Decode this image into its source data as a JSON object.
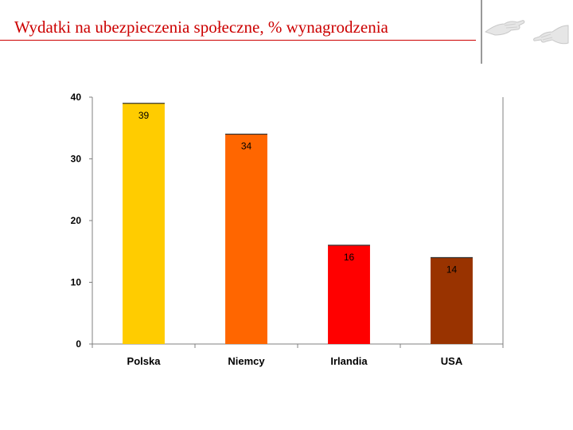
{
  "slide": {
    "title": "Wydatki na ubezpieczenia społeczne, % wynagrodzenia",
    "title_color": "#cc0000",
    "decoration": "reaching-hands-icon"
  },
  "chart_data": {
    "type": "bar",
    "title": "",
    "xlabel": "",
    "ylabel": "",
    "categories": [
      "Polska",
      "Niemcy",
      "Irlandia",
      "USA"
    ],
    "values": [
      39,
      34,
      16,
      14
    ],
    "data_labels": [
      "39",
      "34",
      "16",
      "14"
    ],
    "colors": [
      "#FFCC00",
      "#FF6600",
      "#FF0000",
      "#993300"
    ],
    "ylim": [
      0,
      40
    ],
    "yticks": [
      0,
      10,
      20,
      30,
      40
    ],
    "ytick_labels": [
      "0",
      "10",
      "20",
      "30",
      "40"
    ],
    "grid": false,
    "legend": "none"
  }
}
